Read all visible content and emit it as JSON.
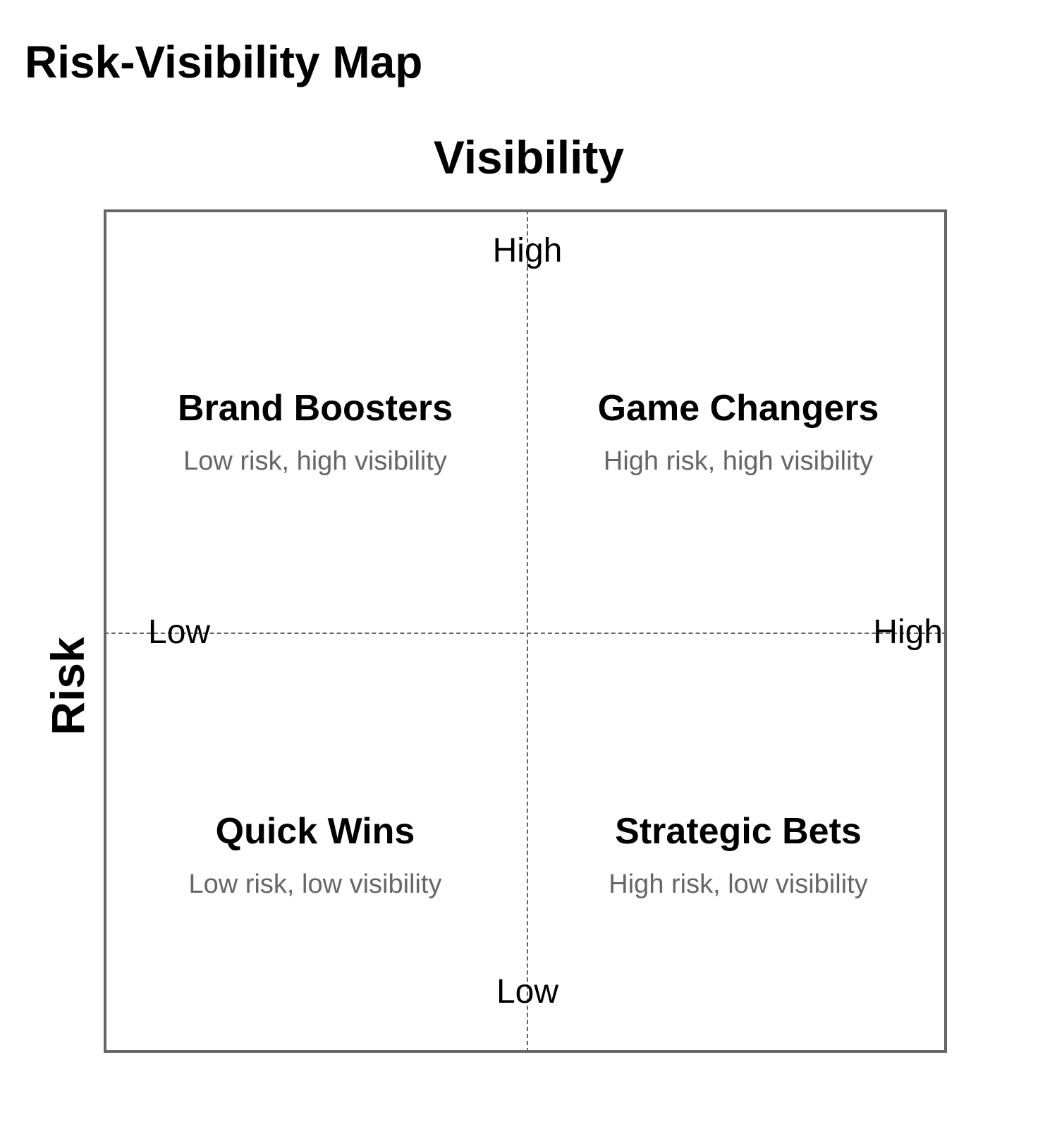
{
  "title": "Risk-Visibility Map",
  "axes": {
    "x_title": "Visibility",
    "y_title": "Risk",
    "top_label": "High",
    "bottom_label": "Low",
    "left_label": "Low",
    "right_label": "High"
  },
  "quadrants": [
    {
      "title": "Brand Boosters",
      "description": "Low risk, high visibility"
    },
    {
      "title": "Game Changers",
      "description": "High risk, high visibility"
    },
    {
      "title": "Quick Wins",
      "description": "Low risk, low visibility"
    },
    {
      "title": "Strategic Bets",
      "description": "High risk, low visibility"
    }
  ],
  "colors": {
    "frame": "#666666",
    "divider": "#666666",
    "description_text": "#666666",
    "title_text": "#000000"
  }
}
